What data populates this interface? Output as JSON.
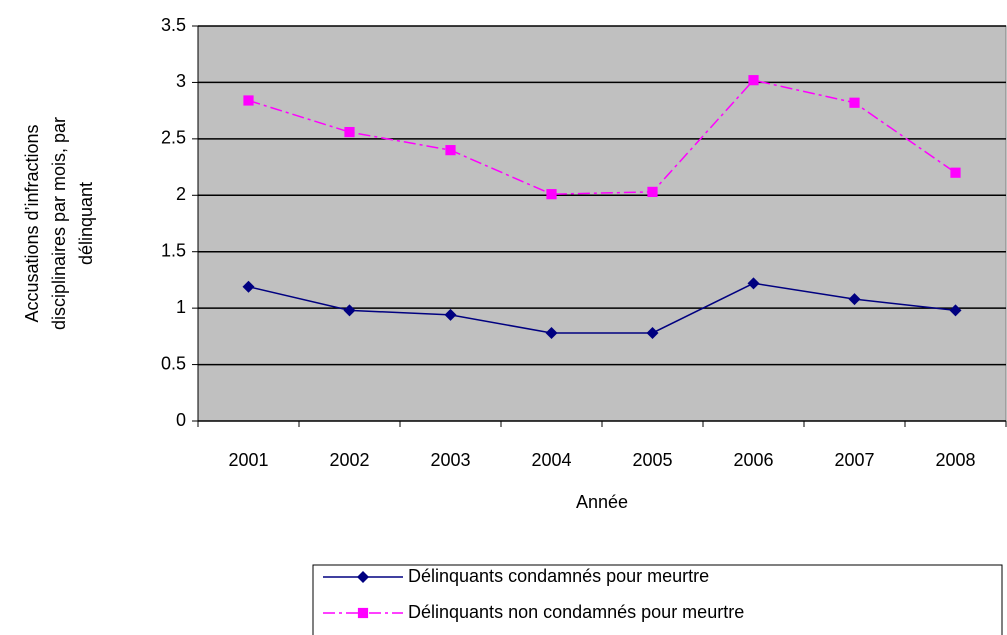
{
  "chart_data": {
    "type": "line",
    "x_label": "Année",
    "y_label": [
      "Accusations d’infractions",
      "disciplinaires par mois, par",
      "délinquant"
    ],
    "categories": [
      "2001",
      "2002",
      "2003",
      "2004",
      "2005",
      "2006",
      "2007",
      "2008"
    ],
    "series": [
      {
        "name": "Délinquants condamnés pour meurtre",
        "color": "#000080",
        "marker": "diamond",
        "linestyle": "solid",
        "values": [
          1.19,
          0.98,
          0.94,
          0.78,
          0.78,
          1.22,
          1.08,
          0.98
        ]
      },
      {
        "name": "Délinquants non condamnés pour meurtre",
        "color": "#ff00ff",
        "marker": "square",
        "linestyle": "dash-dot",
        "values": [
          2.84,
          2.56,
          2.4,
          2.01,
          2.03,
          3.02,
          2.82,
          2.2
        ]
      }
    ],
    "ylim": [
      0,
      3.5
    ],
    "yticks": [
      0,
      0.5,
      1,
      1.5,
      2,
      2.5,
      3,
      3.5
    ],
    "grid": true,
    "plot_background": "#c0c0c0",
    "legend": "bottom"
  }
}
